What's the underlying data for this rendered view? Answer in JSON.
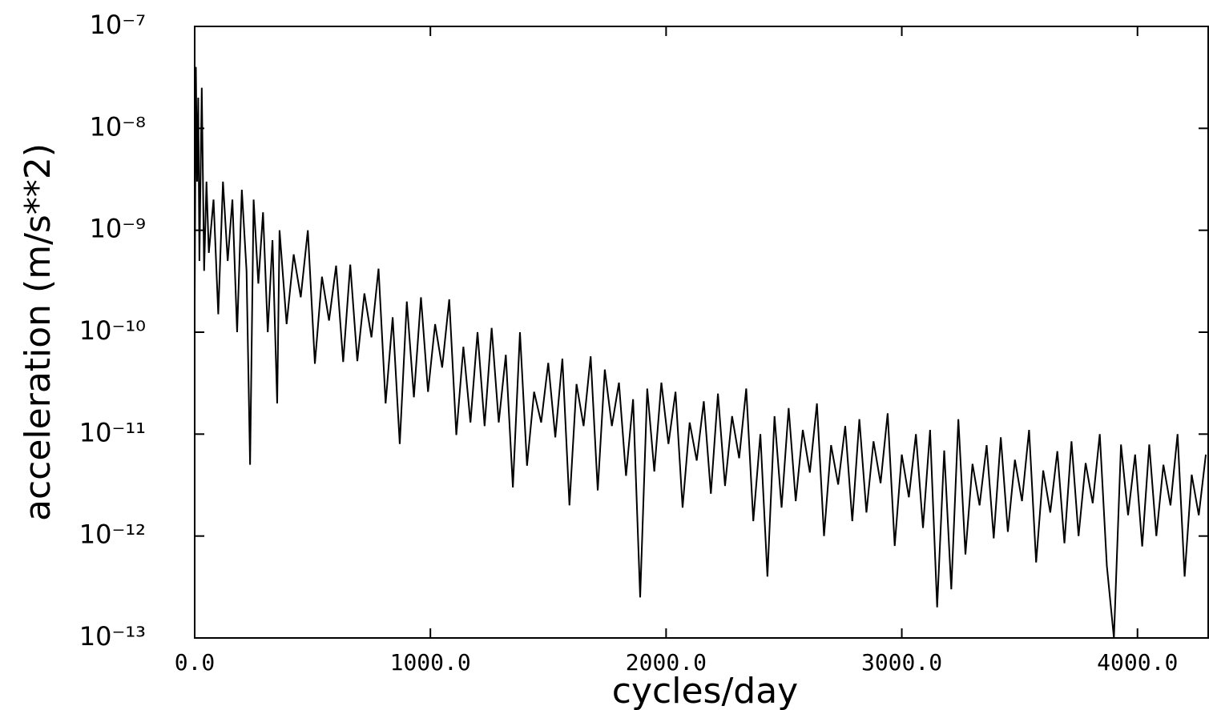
{
  "chart_data": {
    "type": "line",
    "x_label": "cycles/day",
    "y_label": "acceleration (m/s**2)",
    "yscale": "log",
    "xlim": [
      0,
      4300
    ],
    "ylim": [
      1e-13,
      1e-07
    ],
    "xticks": [
      {
        "value": 0,
        "label": "0.0"
      },
      {
        "value": 1000,
        "label": "1000.0"
      },
      {
        "value": 2000,
        "label": "2000.0"
      },
      {
        "value": 3000,
        "label": "3000.0"
      },
      {
        "value": 4000,
        "label": "4000.0"
      }
    ],
    "yticks": [
      {
        "value": 1e-13,
        "label": "10⁻¹³"
      },
      {
        "value": 1e-12,
        "label": "10⁻¹²"
      },
      {
        "value": 1e-11,
        "label": "10⁻¹¹"
      },
      {
        "value": 1e-10,
        "label": "10⁻¹⁰"
      },
      {
        "value": 1e-09,
        "label": "10⁻⁹"
      },
      {
        "value": 1e-08,
        "label": "10⁻⁸"
      },
      {
        "value": 1e-07,
        "label": "10⁻⁷"
      }
    ],
    "color": "#000000",
    "x": [
      0,
      5,
      10,
      15,
      20,
      30,
      40,
      50,
      60,
      80,
      100,
      120,
      140,
      160,
      180,
      200,
      220,
      235,
      250,
      270,
      290,
      310,
      330,
      350,
      360,
      390,
      420,
      450,
      480,
      510,
      540,
      570,
      600,
      630,
      660,
      690,
      720,
      750,
      780,
      810,
      840,
      870,
      900,
      930,
      960,
      990,
      1020,
      1050,
      1080,
      1110,
      1140,
      1170,
      1200,
      1230,
      1260,
      1290,
      1320,
      1350,
      1380,
      1410,
      1440,
      1470,
      1500,
      1530,
      1560,
      1590,
      1620,
      1650,
      1680,
      1710,
      1740,
      1770,
      1800,
      1830,
      1860,
      1890,
      1920,
      1950,
      1980,
      2010,
      2040,
      2070,
      2100,
      2130,
      2160,
      2190,
      2220,
      2250,
      2280,
      2310,
      2340,
      2370,
      2400,
      2430,
      2460,
      2490,
      2520,
      2550,
      2580,
      2610,
      2640,
      2670,
      2700,
      2730,
      2760,
      2790,
      2820,
      2850,
      2880,
      2910,
      2940,
      2970,
      3000,
      3030,
      3060,
      3090,
      3120,
      3150,
      3180,
      3210,
      3240,
      3270,
      3300,
      3330,
      3360,
      3390,
      3420,
      3450,
      3480,
      3510,
      3540,
      3570,
      3600,
      3630,
      3660,
      3690,
      3720,
      3750,
      3780,
      3810,
      3840,
      3870,
      3900,
      3930,
      3960,
      3990,
      4020,
      4050,
      4080,
      4110,
      4140,
      4170,
      4200,
      4230,
      4260,
      4290
    ],
    "values": [
      2e-10,
      4e-08,
      3e-09,
      2e-08,
      5e-10,
      2.5e-08,
      4e-10,
      3e-09,
      6e-10,
      2e-09,
      1.5e-10,
      3e-09,
      5e-10,
      2e-09,
      1e-10,
      2.5e-09,
      4e-10,
      5e-12,
      2e-09,
      3e-10,
      1.5e-09,
      1e-10,
      8e-10,
      2e-11,
      1e-09,
      1.2e-10,
      5.8e-10,
      2.2e-10,
      1e-09,
      4.9e-11,
      3.5e-10,
      1.3e-10,
      4.5e-10,
      5.1e-11,
      4.6e-10,
      5.2e-11,
      2.4e-10,
      8.9e-11,
      4.2e-10,
      2e-11,
      1.4e-10,
      8e-12,
      2e-10,
      2.3e-11,
      2.2e-10,
      2.6e-11,
      1.2e-10,
      4.5e-11,
      2.1e-10,
      9.8e-12,
      7.2e-11,
      1.3e-11,
      1e-10,
      1.2e-11,
      1.1e-10,
      1.3e-11,
      6e-11,
      3e-12,
      1e-10,
      4.9e-12,
      2.6e-11,
      1.3e-11,
      5e-11,
      9.3e-12,
      5.5e-11,
      2e-12,
      3.1e-11,
      1.2e-11,
      5.8e-11,
      2.8e-12,
      4.3e-11,
      1.2e-11,
      3.2e-11,
      3.9e-12,
      2.2e-11,
      2.5e-13,
      2.8e-11,
      4.3e-12,
      3.2e-11,
      8e-12,
      2.6e-11,
      1.9e-12,
      1.3e-11,
      5.5e-12,
      2.1e-11,
      2.6e-12,
      2.5e-11,
      3.1e-12,
      1.5e-11,
      5.8e-12,
      2.8e-11,
      1.4e-12,
      1e-11,
      4e-13,
      1.5e-11,
      1.9e-12,
      1.8e-11,
      2.2e-12,
      1.1e-11,
      4.2e-12,
      2e-11,
      1e-12,
      7.8e-12,
      3.2e-12,
      1.2e-11,
      1.4e-12,
      1.4e-11,
      1.7e-12,
      8.5e-12,
      3.3e-12,
      1.6e-11,
      8e-13,
      6.3e-12,
      2.4e-12,
      1e-11,
      1.2e-12,
      1.1e-11,
      2e-13,
      6.9e-12,
      3e-13,
      1.4e-11,
      6.6e-13,
      5.1e-12,
      2e-12,
      7.8e-12,
      9.5e-13,
      9.3e-12,
      1.1e-12,
      5.6e-12,
      2.2e-12,
      1.1e-11,
      5.5e-13,
      4.4e-12,
      1.7e-12,
      6.8e-12,
      8.5e-13,
      8.5e-12,
      1e-12,
      5.2e-12,
      2.1e-12,
      1e-11,
      5.1e-13,
      1e-13,
      7.9e-12,
      1.6e-12,
      6.3e-12,
      7.9e-13,
      7.9e-12,
      1e-12,
      5e-12,
      2e-12,
      1e-11,
      4e-13,
      4e-12,
      1.6e-12,
      6.3e-12
    ]
  }
}
